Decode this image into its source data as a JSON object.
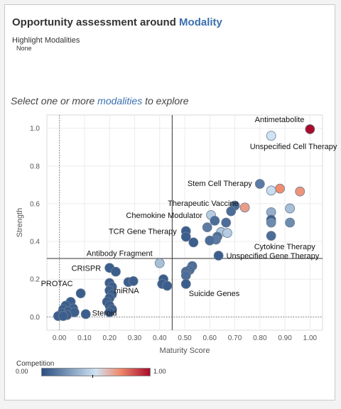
{
  "header": {
    "title_prefix": "Opportunity assessment around ",
    "title_accent": "Modality",
    "highlight_label": "Highlight Modalities",
    "highlight_value": "None"
  },
  "prompt": {
    "before": "Select one or more ",
    "accent": "modalities",
    "after": " to explore"
  },
  "legend": {
    "title": "Competition",
    "min_label": "0.00",
    "max_label": "1.00"
  },
  "colors": {
    "accent": "#3a6fb0",
    "low": "#2b4f82",
    "mid": "#cfe3f3",
    "high": "#a80c2a"
  },
  "chart_data": {
    "type": "scatter",
    "xlabel": "Maturity Score",
    "ylabel": "Strength",
    "xlim": [
      -0.05,
      1.05
    ],
    "ylim": [
      -0.07,
      1.07
    ],
    "xticks": [
      "0.00",
      "0.10",
      "0.20",
      "0.30",
      "0.40",
      "0.50",
      "0.60",
      "0.70",
      "0.80",
      "0.90",
      "1.00"
    ],
    "yticks": [
      "0.0",
      "0.2",
      "0.4",
      "0.6",
      "0.8",
      "1.0"
    ],
    "grid": true,
    "reference_lines": {
      "x": 0.45,
      "y": 0.31
    },
    "points": [
      {
        "x": 1.0,
        "y": 0.995,
        "c": 1.0,
        "label": "Antimetabolite"
      },
      {
        "x": 0.845,
        "y": 0.96,
        "c": 0.5,
        "label": "Unspecified Cell Therapy"
      },
      {
        "x": 0.8,
        "y": 0.705,
        "c": 0.15,
        "label": "Stem Cell Therapy"
      },
      {
        "x": 0.88,
        "y": 0.68,
        "c": 0.72
      },
      {
        "x": 0.845,
        "y": 0.67,
        "c": 0.48
      },
      {
        "x": 0.96,
        "y": 0.665,
        "c": 0.7
      },
      {
        "x": 0.74,
        "y": 0.58,
        "c": 0.68,
        "label": "Therapeutic Vaccine"
      },
      {
        "x": 0.7,
        "y": 0.59,
        "c": 0.1
      },
      {
        "x": 0.685,
        "y": 0.56,
        "c": 0.1
      },
      {
        "x": 0.92,
        "y": 0.575,
        "c": 0.38
      },
      {
        "x": 0.845,
        "y": 0.555,
        "c": 0.32
      },
      {
        "x": 0.605,
        "y": 0.54,
        "c": 0.42,
        "label": "Chemokine Modulator"
      },
      {
        "x": 0.62,
        "y": 0.51,
        "c": 0.1
      },
      {
        "x": 0.665,
        "y": 0.5,
        "c": 0.1
      },
      {
        "x": 0.845,
        "y": 0.515,
        "c": 0.05
      },
      {
        "x": 0.845,
        "y": 0.5,
        "c": 0.2
      },
      {
        "x": 0.92,
        "y": 0.5,
        "c": 0.2
      },
      {
        "x": 0.59,
        "y": 0.475,
        "c": 0.15
      },
      {
        "x": 0.505,
        "y": 0.455,
        "c": 0.05,
        "label": "TCR Gene Therapy"
      },
      {
        "x": 0.645,
        "y": 0.45,
        "c": 0.4
      },
      {
        "x": 0.67,
        "y": 0.445,
        "c": 0.42
      },
      {
        "x": 0.63,
        "y": 0.425,
        "c": 0.1
      },
      {
        "x": 0.625,
        "y": 0.41,
        "c": 0.15
      },
      {
        "x": 0.6,
        "y": 0.405,
        "c": 0.1
      },
      {
        "x": 0.505,
        "y": 0.425,
        "c": 0.05
      },
      {
        "x": 0.535,
        "y": 0.395,
        "c": 0.05
      },
      {
        "x": 0.845,
        "y": 0.43,
        "c": 0.1,
        "label": "Cytokine Therapy"
      },
      {
        "x": 0.635,
        "y": 0.325,
        "c": 0.05,
        "label": "Unspecified Gene Therapy"
      },
      {
        "x": 0.4,
        "y": 0.285,
        "c": 0.38,
        "label": "Antibody Fragment"
      },
      {
        "x": 0.53,
        "y": 0.27,
        "c": 0.1
      },
      {
        "x": 0.52,
        "y": 0.25,
        "c": 0.1
      },
      {
        "x": 0.505,
        "y": 0.24,
        "c": 0.1
      },
      {
        "x": 0.505,
        "y": 0.22,
        "c": 0.1
      },
      {
        "x": 0.2,
        "y": 0.26,
        "c": 0.05,
        "label": "CRISPR"
      },
      {
        "x": 0.225,
        "y": 0.24,
        "c": 0.05
      },
      {
        "x": 0.415,
        "y": 0.2,
        "c": 0.05
      },
      {
        "x": 0.41,
        "y": 0.175,
        "c": 0.05
      },
      {
        "x": 0.43,
        "y": 0.165,
        "c": 0.05
      },
      {
        "x": 0.505,
        "y": 0.175,
        "c": 0.05,
        "label": "Suicide Genes"
      },
      {
        "x": 0.2,
        "y": 0.18,
        "c": 0.05
      },
      {
        "x": 0.21,
        "y": 0.16,
        "c": 0.05
      },
      {
        "x": 0.2,
        "y": 0.14,
        "c": 0.05
      },
      {
        "x": 0.21,
        "y": 0.12,
        "c": 0.05
      },
      {
        "x": 0.2,
        "y": 0.1,
        "c": 0.05
      },
      {
        "x": 0.19,
        "y": 0.08,
        "c": 0.05
      },
      {
        "x": 0.2,
        "y": 0.06,
        "c": 0.05
      },
      {
        "x": 0.21,
        "y": 0.04,
        "c": 0.05
      },
      {
        "x": 0.2,
        "y": 0.025,
        "c": 0.05
      },
      {
        "x": 0.275,
        "y": 0.185,
        "c": 0.05,
        "label": "miRNA"
      },
      {
        "x": 0.295,
        "y": 0.19,
        "c": 0.05
      },
      {
        "x": 0.085,
        "y": 0.125,
        "c": 0.05,
        "label": "PROTAC"
      },
      {
        "x": 0.045,
        "y": 0.08,
        "c": 0.05
      },
      {
        "x": 0.025,
        "y": 0.06,
        "c": 0.05
      },
      {
        "x": 0.055,
        "y": 0.045,
        "c": 0.05
      },
      {
        "x": 0.015,
        "y": 0.04,
        "c": 0.05
      },
      {
        "x": 0.035,
        "y": 0.03,
        "c": 0.05
      },
      {
        "x": 0.06,
        "y": 0.025,
        "c": 0.05
      },
      {
        "x": 0.01,
        "y": 0.02,
        "c": 0.05
      },
      {
        "x": 0.03,
        "y": 0.01,
        "c": 0.05
      },
      {
        "x": -0.005,
        "y": 0.005,
        "c": 0.05
      },
      {
        "x": 0.015,
        "y": 0.005,
        "c": 0.05
      },
      {
        "x": 0.105,
        "y": 0.015,
        "c": 0.05,
        "label": "Steroid"
      }
    ]
  }
}
